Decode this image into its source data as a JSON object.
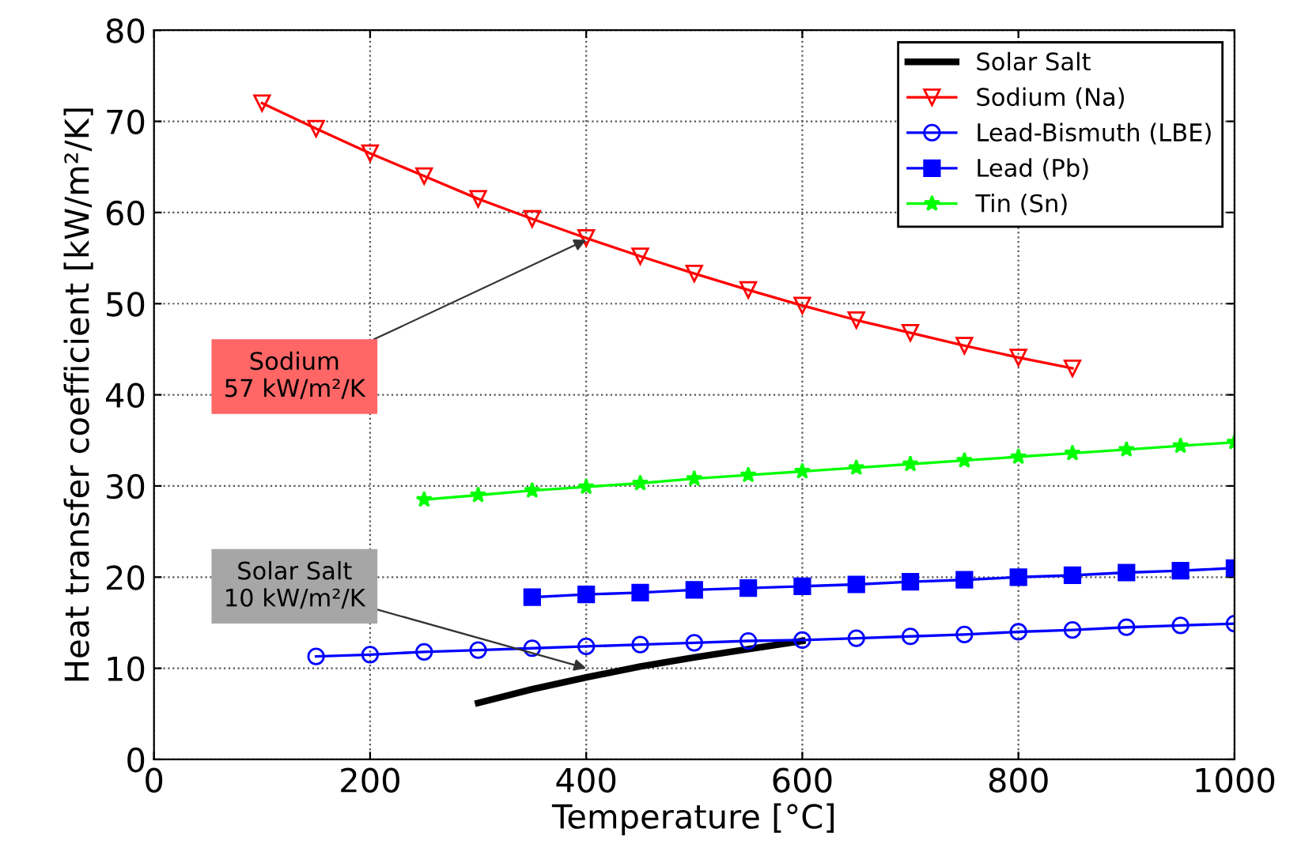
{
  "chart_data": {
    "type": "line",
    "xlabel": "Temperature [°C]",
    "ylabel": "Heat transfer coefficient [kW/m²/K]",
    "xlim": [
      0,
      1000
    ],
    "ylim": [
      0,
      80
    ],
    "xticks": [
      0,
      200,
      400,
      600,
      800,
      1000
    ],
    "yticks": [
      0,
      10,
      20,
      30,
      40,
      50,
      60,
      70,
      80
    ],
    "grid": true,
    "legend": "top right",
    "series": [
      {
        "name": "Solar Salt",
        "color": "#000000",
        "marker": "none",
        "x": [
          300,
          350,
          400,
          450,
          500,
          550,
          600
        ],
        "values": [
          6.2,
          7.7,
          9.0,
          10.2,
          11.2,
          12.1,
          13.0
        ]
      },
      {
        "name": "Sodium (Na)",
        "color": "#ff0000",
        "marker": "triangle",
        "x": [
          100,
          150,
          200,
          250,
          300,
          350,
          400,
          450,
          500,
          550,
          600,
          650,
          700,
          750,
          800,
          850
        ],
        "values": [
          72,
          69.2,
          66.5,
          64,
          61.5,
          59.3,
          57.2,
          55.2,
          53.3,
          51.5,
          49.8,
          48.2,
          46.8,
          45.4,
          44.1,
          42.9
        ]
      },
      {
        "name": "Lead-Bismuth (LBE)",
        "color": "#0000ff",
        "marker": "circle",
        "x": [
          150,
          200,
          250,
          300,
          350,
          400,
          450,
          500,
          550,
          600,
          650,
          700,
          750,
          800,
          850,
          900,
          950,
          1000
        ],
        "values": [
          11.3,
          11.5,
          11.8,
          12.0,
          12.2,
          12.4,
          12.6,
          12.8,
          13.0,
          13.1,
          13.3,
          13.5,
          13.7,
          14.0,
          14.2,
          14.5,
          14.7,
          14.9
        ]
      },
      {
        "name": "Lead (Pb)",
        "color": "#0000ff",
        "marker": "square",
        "x": [
          350,
          400,
          450,
          500,
          550,
          600,
          650,
          700,
          750,
          800,
          850,
          900,
          950,
          1000
        ],
        "values": [
          17.8,
          18.1,
          18.3,
          18.6,
          18.8,
          19.0,
          19.2,
          19.5,
          19.7,
          20.0,
          20.2,
          20.5,
          20.7,
          21.0
        ]
      },
      {
        "name": "Tin (Sn)",
        "color": "#00ff00",
        "marker": "star",
        "x": [
          250,
          300,
          350,
          400,
          450,
          500,
          550,
          600,
          650,
          700,
          750,
          800,
          850,
          900,
          950,
          1000
        ],
        "values": [
          28.5,
          29.0,
          29.5,
          29.9,
          30.3,
          30.8,
          31.2,
          31.6,
          32.0,
          32.4,
          32.8,
          33.2,
          33.6,
          34.0,
          34.4,
          34.8
        ]
      }
    ],
    "annotations": [
      {
        "text": "Sodium\n57 kW/m²/K",
        "x": 400,
        "y": 57
      },
      {
        "text": "Solar Salt\n10 kW/m²/K",
        "x": 400,
        "y": 10
      }
    ]
  }
}
